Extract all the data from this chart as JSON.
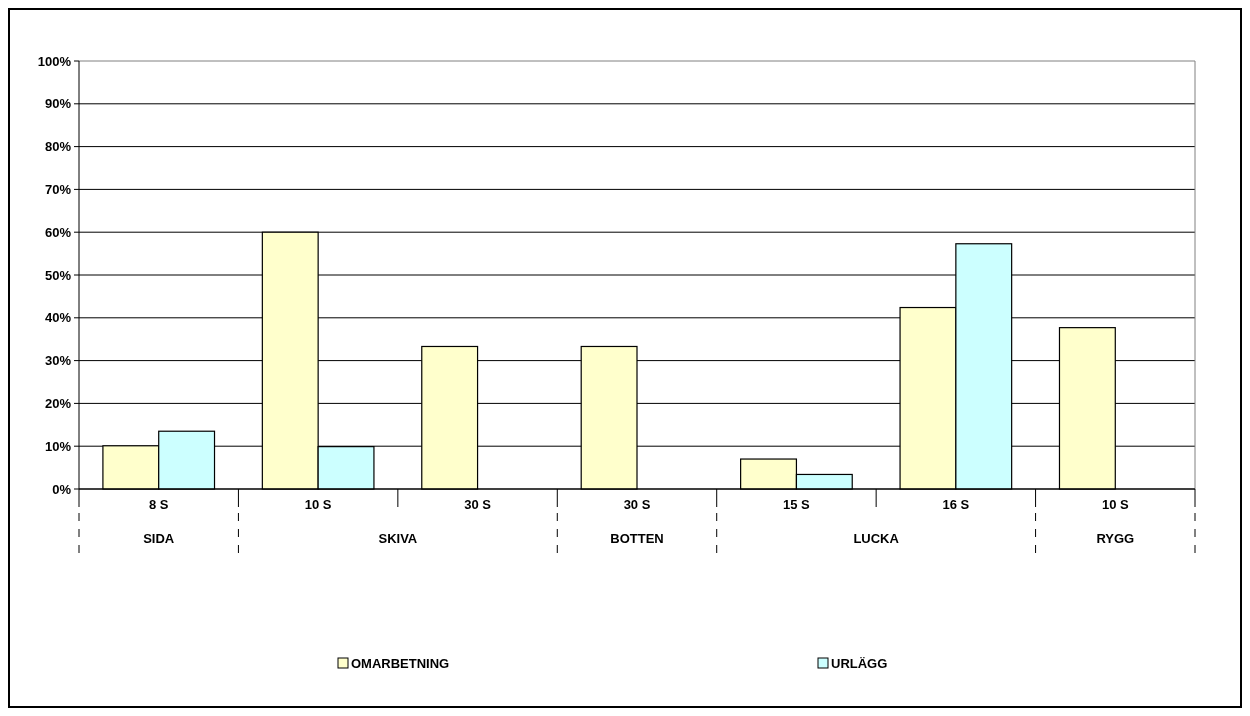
{
  "chart_data": {
    "type": "bar",
    "categories": [
      "8 S",
      "10 S",
      "30 S",
      "30 S",
      "15 S",
      "16 S",
      "10 S"
    ],
    "series": [
      {
        "name": "OMARBETNING",
        "color": "#ffffcc",
        "values": [
          10.1,
          60,
          33.3,
          33.3,
          7,
          42.4,
          37.7
        ]
      },
      {
        "name": "URLÄGG",
        "color": "#ccffff",
        "values": [
          13.5,
          9.9,
          null,
          null,
          3.4,
          57.3,
          null
        ]
      }
    ],
    "ylim": [
      0,
      100
    ],
    "yticks": [
      {
        "value": 0,
        "label": "0%"
      },
      {
        "value": 10,
        "label": "10%"
      },
      {
        "value": 20,
        "label": "20%"
      },
      {
        "value": 30,
        "label": "30%"
      },
      {
        "value": 40,
        "label": "40%"
      },
      {
        "value": 50,
        "label": "50%"
      },
      {
        "value": 60,
        "label": "60%"
      },
      {
        "value": 70,
        "label": "70%"
      },
      {
        "value": 80,
        "label": "80%"
      },
      {
        "value": 90,
        "label": "90%"
      },
      {
        "value": 100,
        "label": "100%"
      }
    ],
    "annotations": [
      "SIDA",
      "SKIVA",
      "BOTTEN",
      "LUCKA",
      "RYGG"
    ],
    "grid": "y",
    "legend": "bottom"
  }
}
